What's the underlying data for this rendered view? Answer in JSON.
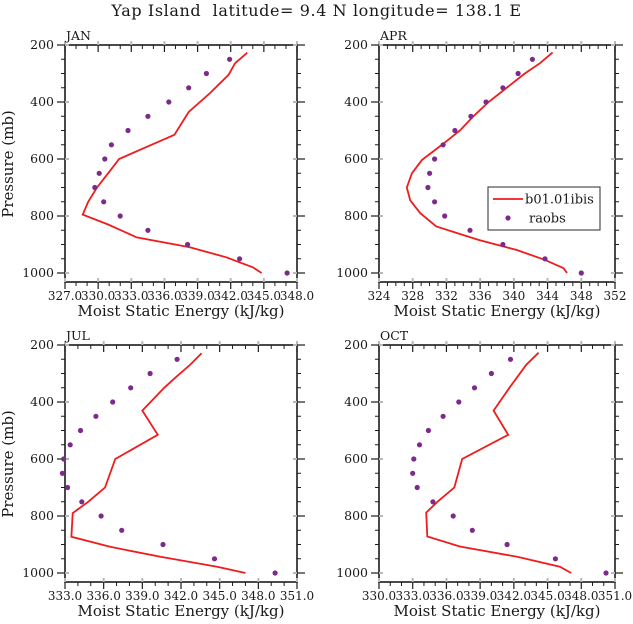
{
  "title": "Yap Island  latitude= 9.4 N longitude= 138.1 E",
  "colors": {
    "model_line": "#ee1c1c",
    "raobs_dot": "#7c2a8c",
    "axis": "#1c1c1c",
    "ghost_tick": "#b9b9b9",
    "legend_border": "#3c3c3c",
    "background": "#ffffff"
  },
  "legend": {
    "entries": [
      {
        "label": "b01.01ibis",
        "type": "line"
      },
      {
        "label": "raobs",
        "type": "marker"
      }
    ]
  },
  "chart_data": [
    {
      "type": "line",
      "label": "JAN",
      "xlabel": "Moist Static Energy (kJ/kg)",
      "ylabel": "Pressure (mb)",
      "xlim": [
        327.0,
        348.0
      ],
      "xticks": [
        327,
        330,
        333,
        336,
        339,
        342,
        345,
        348
      ],
      "xtick_labels": [
        "327.0",
        "330.0",
        "333.0",
        "336.0",
        "339.0",
        "342.0",
        "345.0",
        "348.0"
      ],
      "x_minor_step": 1.0,
      "ylim": [
        200,
        1000
      ],
      "yticks": [
        200,
        400,
        600,
        800,
        1000
      ],
      "ytick_labels": [
        "200",
        "400",
        "600",
        "800",
        "1000"
      ],
      "y_minor_step": 50,
      "show_legend": false,
      "series": [
        {
          "name": "b01.01ibis",
          "type": "line",
          "points": [
            [
              227,
              343.5
            ],
            [
              264,
              342.4
            ],
            [
              305,
              341.8
            ],
            [
              370,
              340.1
            ],
            [
              435,
              338.2
            ],
            [
              515,
              336.9
            ],
            [
              600,
              331.9
            ],
            [
              650,
              330.9
            ],
            [
              700,
              329.9
            ],
            [
              750,
              329.1
            ],
            [
              795,
              328.6
            ],
            [
              830,
              330.9
            ],
            [
              875,
              333.5
            ],
            [
              910,
              338.3
            ],
            [
              945,
              341.6
            ],
            [
              980,
              344.0
            ],
            [
              1000,
              344.8
            ]
          ]
        },
        {
          "name": "raobs",
          "type": "scatter",
          "points": [
            [
              250,
              341.9
            ],
            [
              300,
              339.8
            ],
            [
              350,
              338.2
            ],
            [
              400,
              336.4
            ],
            [
              450,
              334.5
            ],
            [
              500,
              332.7
            ],
            [
              550,
              331.2
            ],
            [
              600,
              330.6
            ],
            [
              650,
              330.1
            ],
            [
              700,
              329.7
            ],
            [
              750,
              330.5
            ],
            [
              800,
              332.0
            ],
            [
              850,
              334.5
            ],
            [
              900,
              338.1
            ],
            [
              950,
              342.8
            ],
            [
              1000,
              347.1
            ]
          ]
        }
      ]
    },
    {
      "type": "line",
      "label": "APR",
      "xlabel": "Moist Static Energy (kJ/kg)",
      "ylabel": "",
      "xlim": [
        324,
        352
      ],
      "xticks": [
        324,
        328,
        332,
        336,
        340,
        344,
        348,
        352
      ],
      "xtick_labels": [
        "324",
        "328",
        "332",
        "336",
        "340",
        "344",
        "348",
        "352"
      ],
      "x_minor_step": 1.0,
      "ylim": [
        200,
        1000
      ],
      "yticks": [
        200,
        400,
        600,
        800,
        1000
      ],
      "ytick_labels": [
        "200",
        "400",
        "600",
        "800",
        "1000"
      ],
      "y_minor_step": 50,
      "show_legend": true,
      "series": [
        {
          "name": "b01.01ibis",
          "type": "line",
          "points": [
            [
              226,
              344.6
            ],
            [
              264,
              343.1
            ],
            [
              300,
              341.3
            ],
            [
              400,
              337.0
            ],
            [
              450,
              335.2
            ],
            [
              500,
              333.6
            ],
            [
              547,
              331.6
            ],
            [
              603,
              329.1
            ],
            [
              650,
              327.9
            ],
            [
              700,
              327.3
            ],
            [
              745,
              327.7
            ],
            [
              790,
              328.9
            ],
            [
              837,
              330.8
            ],
            [
              884,
              335.8
            ],
            [
              919,
              340.3
            ],
            [
              954,
              343.7
            ],
            [
              983,
              345.9
            ],
            [
              1000,
              346.3
            ]
          ]
        },
        {
          "name": "raobs",
          "type": "scatter",
          "points": [
            [
              250,
              342.2
            ],
            [
              300,
              340.5
            ],
            [
              350,
              338.7
            ],
            [
              400,
              336.7
            ],
            [
              450,
              334.9
            ],
            [
              500,
              333.0
            ],
            [
              550,
              331.6
            ],
            [
              600,
              330.6
            ],
            [
              650,
              330.0
            ],
            [
              700,
              329.8
            ],
            [
              750,
              330.6
            ],
            [
              800,
              331.8
            ],
            [
              850,
              334.8
            ],
            [
              900,
              338.7
            ],
            [
              950,
              343.7
            ],
            [
              1000,
              348.0
            ]
          ]
        }
      ]
    },
    {
      "type": "line",
      "label": "JUL",
      "xlabel": "Moist Static Energy (kJ/kg)",
      "ylabel": "Pressure (mb)",
      "xlim": [
        333.0,
        351.0
      ],
      "xticks": [
        333,
        336,
        339,
        342,
        345,
        348,
        351
      ],
      "xtick_labels": [
        "333.0",
        "336.0",
        "339.0",
        "342.0",
        "345.0",
        "348.0",
        "351.0"
      ],
      "x_minor_step": 1.0,
      "ylim": [
        200,
        1000
      ],
      "yticks": [
        200,
        400,
        600,
        800,
        1000
      ],
      "ytick_labels": [
        "200",
        "400",
        "600",
        "800",
        "1000"
      ],
      "y_minor_step": 50,
      "show_legend": false,
      "series": [
        {
          "name": "b01.01ibis",
          "type": "line",
          "points": [
            [
              229,
              343.6
            ],
            [
              270,
              342.7
            ],
            [
              317,
              341.5
            ],
            [
              350,
              340.7
            ],
            [
              430,
              339.0
            ],
            [
              515,
              340.2
            ],
            [
              600,
              336.9
            ],
            [
              700,
              336.1
            ],
            [
              750,
              334.8
            ],
            [
              790,
              333.6
            ],
            [
              873,
              333.5
            ],
            [
              908,
              336.5
            ],
            [
              943,
              340.4
            ],
            [
              978,
              344.8
            ],
            [
              1000,
              347.0
            ]
          ]
        },
        {
          "name": "raobs",
          "type": "scatter",
          "points": [
            [
              250,
              341.7
            ],
            [
              300,
              339.6
            ],
            [
              350,
              338.1
            ],
            [
              400,
              336.7
            ],
            [
              450,
              335.4
            ],
            [
              500,
              334.2
            ],
            [
              550,
              333.4
            ],
            [
              600,
              332.9
            ],
            [
              650,
              332.8
            ],
            [
              700,
              333.2
            ],
            [
              750,
              334.3
            ],
            [
              800,
              335.8
            ],
            [
              850,
              337.4
            ],
            [
              900,
              340.6
            ],
            [
              950,
              344.6
            ],
            [
              1000,
              349.3
            ]
          ]
        }
      ]
    },
    {
      "type": "line",
      "label": "OCT",
      "xlabel": "Moist Static Energy (kJ/kg)",
      "ylabel": "",
      "xlim": [
        330.0,
        351.0
      ],
      "xticks": [
        330,
        333,
        336,
        339,
        342,
        345,
        348,
        351
      ],
      "xtick_labels": [
        "330.0",
        "333.0",
        "336.0",
        "339.0",
        "342.0",
        "345.0",
        "348.0",
        "351.0"
      ],
      "x_minor_step": 1.0,
      "ylim": [
        200,
        1000
      ],
      "yticks": [
        200,
        400,
        600,
        800,
        1000
      ],
      "ytick_labels": [
        "200",
        "400",
        "600",
        "800",
        "1000"
      ],
      "y_minor_step": 50,
      "show_legend": false,
      "series": [
        {
          "name": "b01.01ibis",
          "type": "line",
          "points": [
            [
              227,
              344.2
            ],
            [
              270,
              343.1
            ],
            [
              350,
              341.6
            ],
            [
              430,
              340.2
            ],
            [
              515,
              341.5
            ],
            [
              600,
              337.4
            ],
            [
              700,
              336.7
            ],
            [
              750,
              335.2
            ],
            [
              788,
              334.2
            ],
            [
              872,
              334.3
            ],
            [
              907,
              337.2
            ],
            [
              943,
              342.3
            ],
            [
              978,
              346.1
            ],
            [
              1000,
              347.1
            ]
          ]
        },
        {
          "name": "raobs",
          "type": "scatter",
          "points": [
            [
              250,
              341.7
            ],
            [
              300,
              340.0
            ],
            [
              350,
              338.5
            ],
            [
              400,
              337.1
            ],
            [
              450,
              335.7
            ],
            [
              500,
              334.4
            ],
            [
              550,
              333.6
            ],
            [
              600,
              333.1
            ],
            [
              650,
              333.0
            ],
            [
              700,
              333.4
            ],
            [
              750,
              334.8
            ],
            [
              800,
              336.6
            ],
            [
              850,
              338.3
            ],
            [
              900,
              341.4
            ],
            [
              950,
              345.7
            ],
            [
              1000,
              350.2
            ]
          ]
        }
      ]
    }
  ]
}
